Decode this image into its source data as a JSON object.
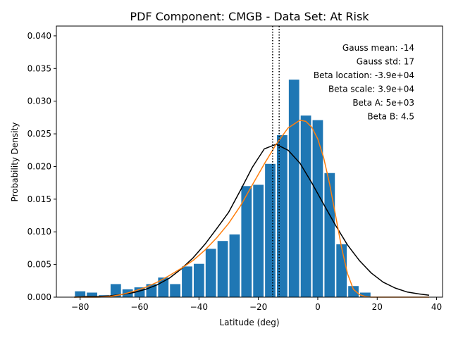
{
  "chart_data": {
    "type": "bar",
    "title": "PDF Component: CMGB - Data Set: At Risk",
    "xlabel": "Latitude (deg)",
    "ylabel": "Probability Density",
    "xlim": [
      -88,
      42
    ],
    "ylim": [
      0,
      0.0415
    ],
    "x_ticks": [
      {
        "value": -80,
        "label": "−80"
      },
      {
        "value": -60,
        "label": "−60"
      },
      {
        "value": -40,
        "label": "−40"
      },
      {
        "value": -20,
        "label": "−20"
      },
      {
        "value": 0,
        "label": "0"
      },
      {
        "value": 20,
        "label": "20"
      },
      {
        "value": 40,
        "label": "40"
      }
    ],
    "y_ticks": [
      {
        "value": 0.0,
        "label": "0.000"
      },
      {
        "value": 0.005,
        "label": "0.005"
      },
      {
        "value": 0.01,
        "label": "0.010"
      },
      {
        "value": 0.015,
        "label": "0.015"
      },
      {
        "value": 0.02,
        "label": "0.020"
      },
      {
        "value": 0.025,
        "label": "0.025"
      },
      {
        "value": 0.03,
        "label": "0.030"
      },
      {
        "value": 0.035,
        "label": "0.035"
      },
      {
        "value": 0.04,
        "label": "0.040"
      }
    ],
    "grid": false,
    "bar_color": "#1f77b4",
    "bins": [
      {
        "left": -82,
        "right": -78,
        "value": 0.0009
      },
      {
        "left": -78,
        "right": -74,
        "value": 0.0007
      },
      {
        "left": -74,
        "right": -70,
        "value": 0.0003
      },
      {
        "left": -70,
        "right": -66,
        "value": 0.002
      },
      {
        "left": -66,
        "right": -62,
        "value": 0.0012
      },
      {
        "left": -62,
        "right": -58,
        "value": 0.0015
      },
      {
        "left": -58,
        "right": -54,
        "value": 0.002
      },
      {
        "left": -54,
        "right": -50,
        "value": 0.003
      },
      {
        "left": -50,
        "right": -46,
        "value": 0.002
      },
      {
        "left": -46,
        "right": -42,
        "value": 0.0047
      },
      {
        "left": -42,
        "right": -38,
        "value": 0.0051
      },
      {
        "left": -38,
        "right": -34,
        "value": 0.0074
      },
      {
        "left": -34,
        "right": -30,
        "value": 0.0086
      },
      {
        "left": -30,
        "right": -26,
        "value": 0.0096
      },
      {
        "left": -26,
        "right": -22,
        "value": 0.017
      },
      {
        "left": -22,
        "right": -18,
        "value": 0.0172
      },
      {
        "left": -18,
        "right": -14,
        "value": 0.0204
      },
      {
        "left": -14,
        "right": -10,
        "value": 0.0248
      },
      {
        "left": -10,
        "right": -6,
        "value": 0.0333
      },
      {
        "left": -6,
        "right": -2,
        "value": 0.0278
      },
      {
        "left": -2,
        "right": 2,
        "value": 0.0271
      },
      {
        "left": 2,
        "right": 6,
        "value": 0.019
      },
      {
        "left": 6,
        "right": 10,
        "value": 0.0081
      },
      {
        "left": 10,
        "right": 14,
        "value": 0.0017
      },
      {
        "left": 14,
        "right": 18,
        "value": 0.0007
      }
    ],
    "series": [
      {
        "type": "line",
        "color": "#000000",
        "x": [
          -82,
          -78,
          -74,
          -70,
          -66,
          -62,
          -58,
          -54,
          -50,
          -46,
          -42,
          -38,
          -34,
          -30,
          -26,
          -22,
          -18,
          -14,
          -10,
          -6,
          -2,
          2,
          6,
          10,
          14,
          18,
          22,
          26,
          30,
          34,
          37.5
        ],
        "y": [
          0.0,
          0.0001,
          0.0001,
          0.0002,
          0.0004,
          0.0007,
          0.0012,
          0.0019,
          0.0029,
          0.0043,
          0.006,
          0.0081,
          0.0105,
          0.013,
          0.0164,
          0.0199,
          0.0227,
          0.0234,
          0.0225,
          0.0205,
          0.0175,
          0.0142,
          0.011,
          0.008,
          0.0056,
          0.0037,
          0.0023,
          0.0014,
          0.0008,
          0.0005,
          0.0003
        ]
      },
      {
        "type": "line",
        "color": "#ff7f0e",
        "x": [
          -82,
          -78,
          -74,
          -70,
          -66,
          -62,
          -58,
          -54,
          -50,
          -46,
          -42,
          -38,
          -34,
          -30,
          -26,
          -22,
          -18,
          -14,
          -10,
          -6,
          -4,
          -2,
          0,
          2,
          4,
          6,
          8,
          10,
          12,
          14,
          16,
          18,
          20,
          37.5
        ],
        "y": [
          0.0,
          0.0,
          0.0,
          0.0001,
          0.0004,
          0.0009,
          0.0015,
          0.0023,
          0.0033,
          0.0044,
          0.0056,
          0.0072,
          0.0091,
          0.0113,
          0.014,
          0.0172,
          0.0204,
          0.0234,
          0.0259,
          0.0271,
          0.0269,
          0.026,
          0.0242,
          0.0213,
          0.0173,
          0.0125,
          0.0076,
          0.0036,
          0.0012,
          0.0004,
          0.0001,
          0.0,
          0.0,
          0.0
        ]
      }
    ],
    "vlines": [
      {
        "x": -15.2,
        "color": "#000000",
        "style": "dotted"
      },
      {
        "x": -13.0,
        "color": "#000000",
        "style": "dotted"
      }
    ],
    "annotations": [
      "Gauss mean: -14",
      "Gauss std: 17",
      "Beta location: -3.9e+04",
      "Beta scale: 3.9e+04",
      "Beta A: 5e+03",
      "Beta B: 4.5"
    ]
  }
}
